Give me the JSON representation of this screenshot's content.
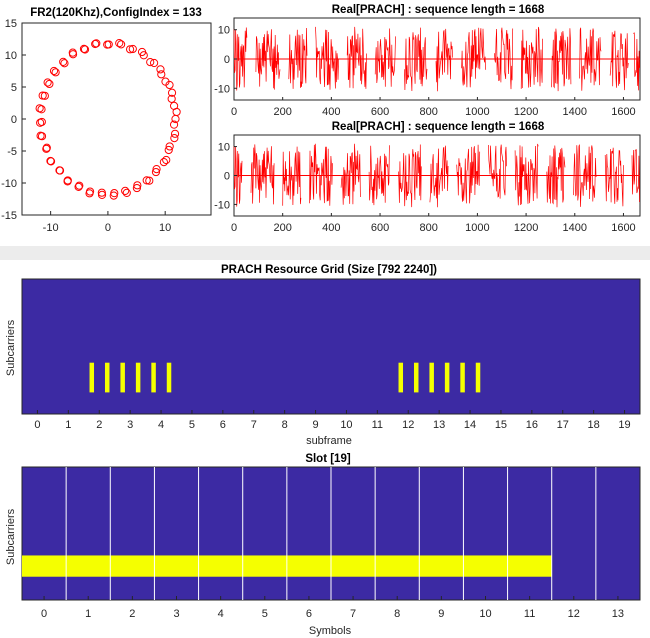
{
  "colors": {
    "signal": "#ff0000",
    "grid_bg": "#3c2aa3",
    "occupied": "#f5ff00",
    "divider": "#ffffff",
    "separator": "#ececec",
    "axis": "#262626"
  },
  "chart_data": [
    {
      "id": "constellation",
      "type": "scatter",
      "title": "FR2(120Khz),ConfigIndex = 133",
      "xlabel": "",
      "ylabel": "",
      "xlim": [
        -15,
        18
      ],
      "ylim": [
        -15,
        15
      ],
      "xticks": [
        "-10",
        "0",
        "10"
      ],
      "yticks": [
        "15",
        "10",
        "5",
        "0",
        "-5",
        "-10",
        "-15"
      ],
      "marker": "open-circle",
      "radius": 11.8,
      "point_count": 70
    },
    {
      "id": "time-series-1",
      "type": "line",
      "title": "Real[PRACH] : sequence length = 1668",
      "xlim": [
        0,
        1668
      ],
      "ylim": [
        -14,
        14
      ],
      "xticks": [
        "0",
        "200",
        "400",
        "600",
        "800",
        "1000",
        "1200",
        "1400",
        "1600"
      ],
      "yticks": [
        "10",
        "0",
        "-10"
      ],
      "amplitude": 11,
      "bursts": [
        [
          0,
          55
        ],
        [
          90,
          190
        ],
        [
          225,
          300
        ],
        [
          335,
          430
        ],
        [
          465,
          545
        ],
        [
          580,
          665
        ],
        [
          700,
          795
        ],
        [
          830,
          900
        ],
        [
          935,
          1035
        ],
        [
          1070,
          1145
        ],
        [
          1180,
          1270
        ],
        [
          1305,
          1385
        ],
        [
          1420,
          1510
        ],
        [
          1545,
          1620
        ],
        [
          1640,
          1668
        ]
      ]
    },
    {
      "id": "time-series-2",
      "type": "line",
      "title": "Real[PRACH] : sequence length = 1668",
      "xlim": [
        0,
        1668
      ],
      "ylim": [
        -14,
        14
      ],
      "xticks": [
        "0",
        "200",
        "400",
        "600",
        "800",
        "1000",
        "1200",
        "1400",
        "1600"
      ],
      "yticks": [
        "10",
        "0",
        "-10"
      ],
      "amplitude": 11,
      "bursts": [
        [
          0,
          35
        ],
        [
          70,
          165
        ],
        [
          200,
          275
        ],
        [
          310,
          405
        ],
        [
          440,
          520
        ],
        [
          555,
          640
        ],
        [
          675,
          770
        ],
        [
          805,
          880
        ],
        [
          915,
          1010
        ],
        [
          1045,
          1120
        ],
        [
          1155,
          1250
        ],
        [
          1285,
          1360
        ],
        [
          1395,
          1490
        ],
        [
          1525,
          1600
        ],
        [
          1635,
          1668
        ]
      ]
    },
    {
      "id": "resource-grid",
      "type": "heatmap",
      "title": "PRACH Resource Grid (Size [792 2240])",
      "xlabel": "subframe",
      "ylabel": "Subcarriers",
      "xlim": [
        -0.5,
        19.5
      ],
      "xticks": [
        "0",
        "1",
        "2",
        "3",
        "4",
        "5",
        "6",
        "7",
        "8",
        "9",
        "10",
        "11",
        "12",
        "13",
        "14",
        "15",
        "16",
        "17",
        "18",
        "19"
      ],
      "occupied_subframes": [
        2,
        3,
        4,
        12,
        13,
        14
      ],
      "bars_per_subframe": 2,
      "band_fraction": [
        0.62,
        0.84
      ]
    },
    {
      "id": "slot-grid",
      "type": "heatmap",
      "title": "Slot [19]",
      "xlabel": "Symbols",
      "ylabel": "Subcarriers",
      "xlim": [
        -0.5,
        13.5
      ],
      "xticks": [
        "0",
        "1",
        "2",
        "3",
        "4",
        "5",
        "6",
        "7",
        "8",
        "9",
        "10",
        "11",
        "12",
        "13"
      ],
      "occupied_symbols": [
        0,
        11
      ],
      "band_fraction": [
        0.665,
        0.825
      ]
    }
  ]
}
